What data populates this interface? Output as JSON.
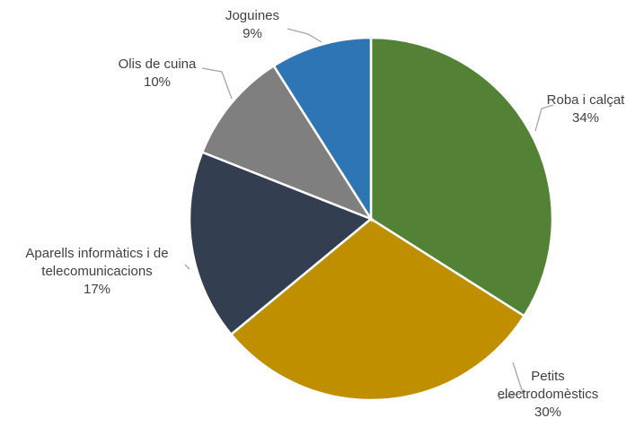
{
  "chart_data": {
    "type": "pie",
    "title": "",
    "legend": "none",
    "slices": [
      {
        "label_lines": [
          "Roba i calçat"
        ],
        "value_label": "34%",
        "value": 34,
        "color": "#538135"
      },
      {
        "label_lines": [
          "Petits",
          "electrodomèstics"
        ],
        "value_label": "30%",
        "value": 30,
        "color": "#bf8f00"
      },
      {
        "label_lines": [
          "Aparells informàtics i de",
          "telecomunicacions"
        ],
        "value_label": "17%",
        "value": 17,
        "color": "#333f50"
      },
      {
        "label_lines": [
          "Olis de cuina"
        ],
        "value_label": "10%",
        "value": 10,
        "color": "#7f7f7f"
      },
      {
        "label_lines": [
          "Joguines"
        ],
        "value_label": "9%",
        "value": 9,
        "color": "#2e75b6"
      }
    ]
  }
}
